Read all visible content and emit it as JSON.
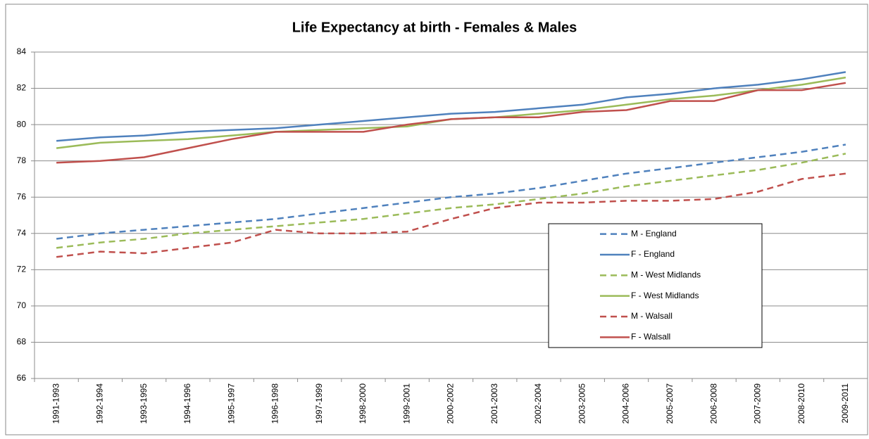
{
  "chart_data": {
    "type": "line",
    "title": "Life Expectancy  at birth - Females & Males",
    "categories": [
      "1991-1993",
      "1992-1994",
      "1993-1995",
      "1994-1996",
      "1995-1997",
      "1996-1998",
      "1997-1999",
      "1998-2000",
      "1999-2001",
      "2000-2002",
      "2001-2003",
      "2002-2004",
      "2003-2005",
      "2004-2006",
      "2005-2007",
      "2006-2008",
      "2007-2009",
      "2008-2010",
      "2009-2011"
    ],
    "series": [
      {
        "name": "M - England",
        "color": "#4f81bd",
        "dashed": true,
        "values": [
          73.7,
          74.0,
          74.2,
          74.4,
          74.6,
          74.8,
          75.1,
          75.4,
          75.7,
          76.0,
          76.2,
          76.5,
          76.9,
          77.3,
          77.6,
          77.9,
          78.2,
          78.5,
          78.9
        ]
      },
      {
        "name": "F - England",
        "color": "#4f81bd",
        "dashed": false,
        "values": [
          79.1,
          79.3,
          79.4,
          79.6,
          79.7,
          79.8,
          80.0,
          80.2,
          80.4,
          80.6,
          80.7,
          80.9,
          81.1,
          81.5,
          81.7,
          82.0,
          82.2,
          82.5,
          82.9
        ]
      },
      {
        "name": "M - West Midlands",
        "color": "#9bbb59",
        "dashed": true,
        "values": [
          73.2,
          73.5,
          73.7,
          74.0,
          74.2,
          74.4,
          74.6,
          74.8,
          75.1,
          75.4,
          75.6,
          75.9,
          76.2,
          76.6,
          76.9,
          77.2,
          77.5,
          77.9,
          78.4
        ]
      },
      {
        "name": "F - West Midlands",
        "color": "#9bbb59",
        "dashed": false,
        "values": [
          78.7,
          79.0,
          79.1,
          79.2,
          79.4,
          79.6,
          79.7,
          79.8,
          79.9,
          80.3,
          80.4,
          80.6,
          80.8,
          81.1,
          81.4,
          81.6,
          81.9,
          82.2,
          82.6
        ]
      },
      {
        "name": "M - Walsall",
        "color": "#c0504d",
        "dashed": true,
        "values": [
          72.7,
          73.0,
          72.9,
          73.2,
          73.5,
          74.2,
          74.0,
          74.0,
          74.1,
          74.8,
          75.4,
          75.7,
          75.7,
          75.8,
          75.8,
          75.9,
          76.3,
          77.0,
          77.3
        ]
      },
      {
        "name": "F - Walsall",
        "color": "#c0504d",
        "dashed": false,
        "values": [
          77.9,
          78.0,
          78.2,
          78.7,
          79.2,
          79.6,
          79.6,
          79.6,
          80.0,
          80.3,
          80.4,
          80.4,
          80.7,
          80.8,
          81.3,
          81.3,
          81.9,
          81.9,
          82.3
        ]
      }
    ],
    "ylim": [
      66,
      84
    ],
    "yticks": [
      66,
      68,
      70,
      72,
      74,
      76,
      78,
      80,
      82,
      84
    ],
    "grid": true
  }
}
